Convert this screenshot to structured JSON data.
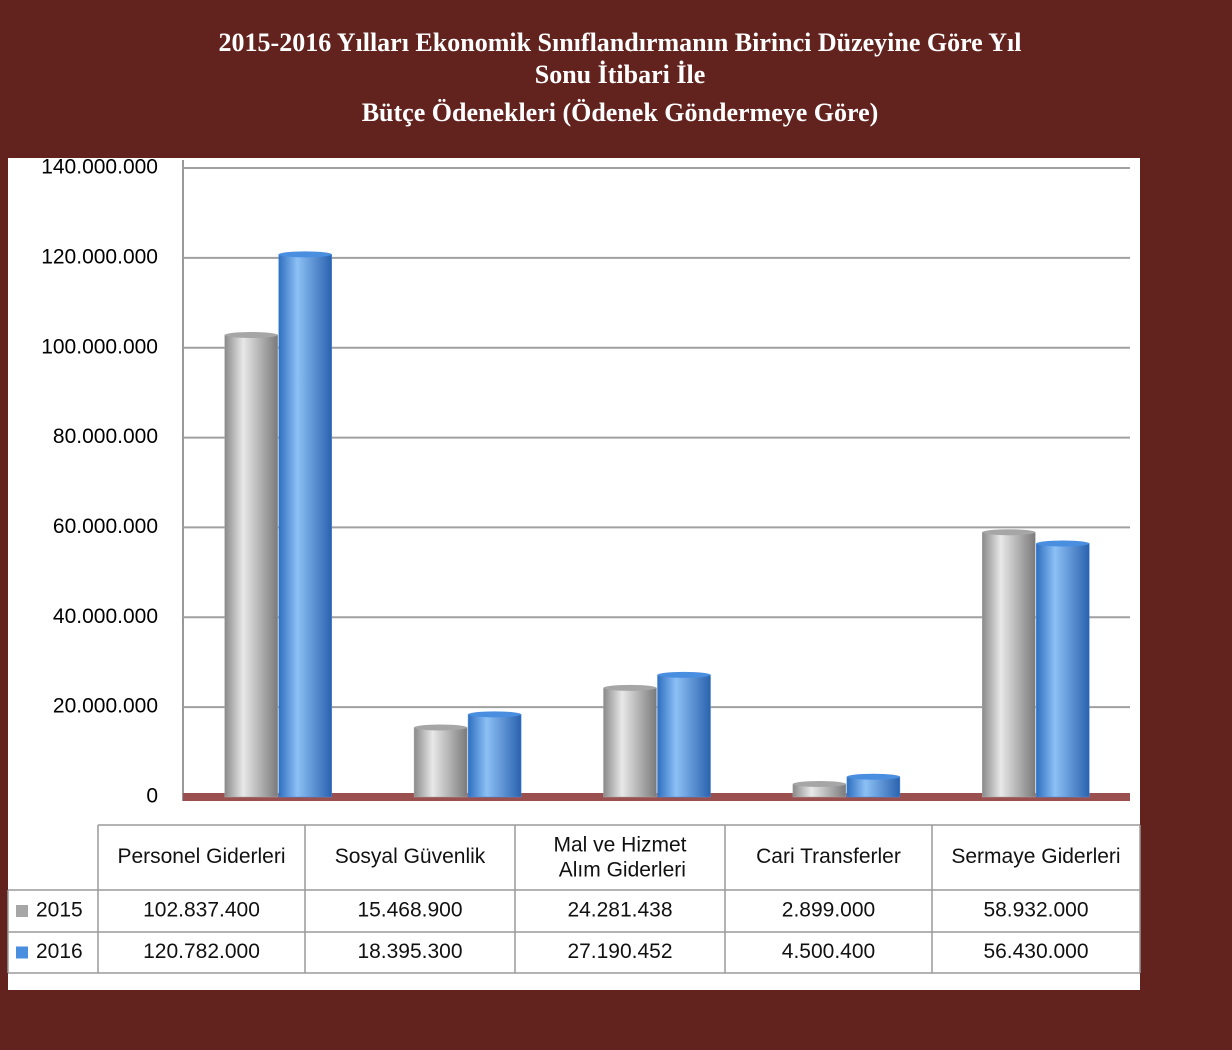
{
  "chart_data": {
    "type": "bar",
    "title": [
      "2015-2016 Yılları Ekonomik Sınıflandırmanın Birinci Düzeyine  Göre Yıl",
      "Sonu İtibari İle",
      "Bütçe Ödenekleri  (Ödenek Göndermeye Göre)"
    ],
    "categories": [
      "Personel Giderleri",
      "Sosyal Güvenlik",
      "Mal ve Hizmet Alım Giderleri",
      "Cari Transferler",
      "Sermaye Giderleri"
    ],
    "series": [
      {
        "name": "2015",
        "color": "#a6a6a6",
        "values": [
          102837400,
          15468900,
          24281438,
          2899000,
          58932000
        ],
        "value_labels": [
          "102.837.400",
          "15.468.900",
          "24.281.438",
          "2.899.000",
          "58.932.000"
        ]
      },
      {
        "name": "2016",
        "color": "#4a8ee0",
        "values": [
          120782000,
          18395300,
          27190452,
          4500400,
          56430000
        ],
        "value_labels": [
          "120.782.000",
          "18.395.300",
          "27.190.452",
          "4.500.400",
          "56.430.000"
        ]
      }
    ],
    "ylim": [
      0,
      140000000
    ],
    "yticks": [
      0,
      {
        "value": 20000000,
        "label": "20.000.000"
      },
      {
        "value": 40000000,
        "label": "40.000.000"
      },
      {
        "value": 60000000,
        "label": "60.000.000"
      },
      {
        "value": 80000000,
        "label": "80.000.000"
      },
      {
        "value": 100000000,
        "label": "100.000.000"
      },
      {
        "value": 120000000,
        "label": "120.000.000"
      },
      {
        "value": 140000000,
        "label": "140.000.000"
      }
    ],
    "grid": true
  }
}
